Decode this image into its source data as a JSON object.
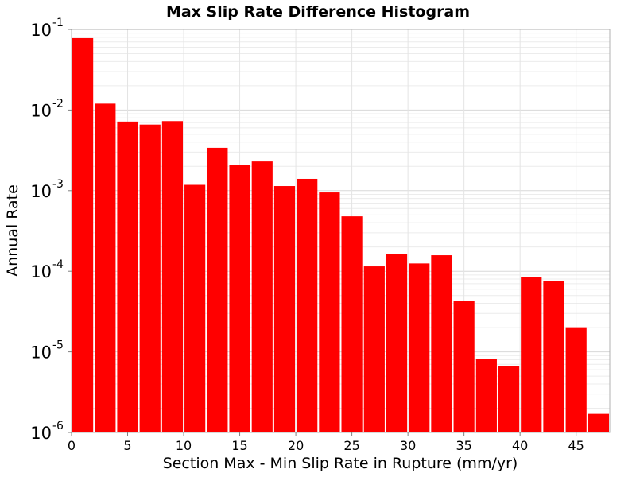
{
  "chart_data": {
    "type": "bar",
    "title": "Max Slip Rate Difference Histogram",
    "xlabel": "Section Max - Min Slip Rate in Rupture (mm/yr)",
    "ylabel": "Annual Rate",
    "x_scale": "linear",
    "y_scale": "log",
    "xlim": [
      0,
      48
    ],
    "ylim": [
      1e-06,
      0.1
    ],
    "x_ticks": [
      0,
      5,
      10,
      15,
      20,
      25,
      30,
      35,
      40,
      45
    ],
    "y_ticks": [
      {
        "value": 1e-06,
        "base": "10",
        "exp": "-6"
      },
      {
        "value": 1e-05,
        "base": "10",
        "exp": "-5"
      },
      {
        "value": 0.0001,
        "base": "10",
        "exp": "-4"
      },
      {
        "value": 0.001,
        "base": "10",
        "exp": "-3"
      },
      {
        "value": 0.01,
        "base": "10",
        "exp": "-2"
      },
      {
        "value": 0.1,
        "base": "10",
        "exp": "-1"
      }
    ],
    "grid": true,
    "bar_color": "#ff0000",
    "bin_width": 2,
    "bins": [
      0,
      2,
      4,
      6,
      8,
      10,
      12,
      14,
      16,
      18,
      20,
      22,
      24,
      26,
      28,
      30,
      32,
      34,
      36,
      38,
      40,
      42,
      44,
      46
    ],
    "values": [
      0.078,
      0.012,
      0.0072,
      0.0066,
      0.0073,
      0.00118,
      0.0034,
      0.0021,
      0.0023,
      0.00114,
      0.0014,
      0.00095,
      0.00048,
      0.000115,
      0.000162,
      0.000125,
      0.000158,
      4.25e-05,
      8.1e-06,
      6.7e-06,
      8.4e-05,
      7.5e-05,
      2.02e-05,
      1.7e-06
    ]
  }
}
